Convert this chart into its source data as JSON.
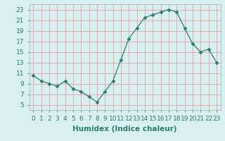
{
  "x": [
    0,
    1,
    2,
    3,
    4,
    5,
    6,
    7,
    8,
    9,
    10,
    11,
    12,
    13,
    14,
    15,
    16,
    17,
    18,
    19,
    20,
    21,
    22,
    23
  ],
  "y": [
    10.5,
    9.5,
    9.0,
    8.5,
    9.5,
    8.0,
    7.5,
    6.5,
    5.5,
    7.5,
    9.5,
    13.5,
    17.5,
    19.5,
    21.5,
    22.0,
    22.5,
    23.0,
    22.5,
    19.5,
    16.5,
    15.0,
    15.5,
    13.0
  ],
  "line_color": "#2e7d6e",
  "marker": "D",
  "marker_size": 2.5,
  "bg_color": "#d8f0f0",
  "grid_color": "#e8a0a0",
  "xlabel": "Humidex (Indice chaleur)",
  "xlim": [
    -0.5,
    23.5
  ],
  "ylim": [
    4,
    24
  ],
  "yticks": [
    5,
    7,
    9,
    11,
    13,
    15,
    17,
    19,
    21,
    23
  ],
  "xtick_labels": [
    "0",
    "1",
    "2",
    "3",
    "4",
    "5",
    "6",
    "7",
    "8",
    "9",
    "10",
    "11",
    "12",
    "13",
    "14",
    "15",
    "16",
    "17",
    "18",
    "19",
    "20",
    "21",
    "22",
    "23"
  ],
  "xlabel_fontsize": 7.5,
  "tick_fontsize": 6.5,
  "linewidth": 0.9
}
